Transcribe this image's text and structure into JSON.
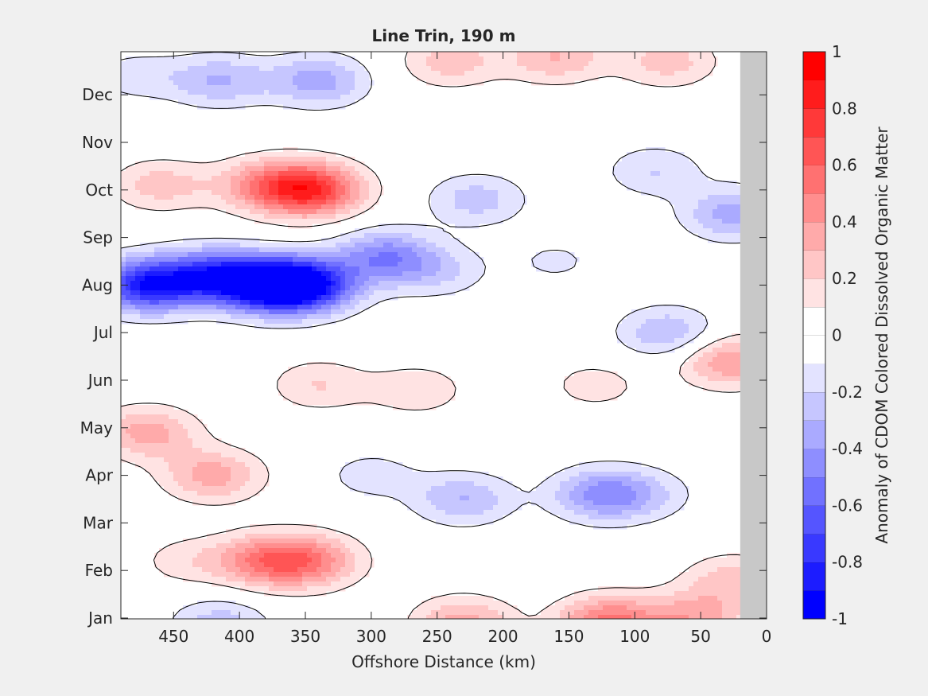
{
  "chart_data": {
    "type": "heatmap",
    "subtype": "filled-contour",
    "title": "Line Trin, 190 m",
    "xlabel": "Offshore Distance (km)",
    "xlim": [
      490,
      0
    ],
    "xticks": [
      450,
      400,
      350,
      300,
      250,
      200,
      150,
      100,
      50,
      0
    ],
    "y_tick_labels": [
      "Jan",
      "Feb",
      "Mar",
      "Apr",
      "May",
      "Jun",
      "Jul",
      "Aug",
      "Sep",
      "Oct",
      "Nov",
      "Dec"
    ],
    "colorbar": {
      "label": "Anomaly of CDOM Colored Dissolved Organic Matter",
      "range": [
        -1,
        1
      ],
      "ticks": [
        1,
        0.8,
        0.6,
        0.4,
        0.2,
        0,
        -0.2,
        -0.4,
        -0.6,
        -0.8,
        -1
      ],
      "levels": [
        -1,
        -0.9,
        -0.8,
        -0.7,
        -0.6,
        -0.5,
        -0.4,
        -0.3,
        -0.2,
        -0.1,
        0,
        0.1,
        0.2,
        0.3,
        0.4,
        0.5,
        0.6,
        0.7,
        0.8,
        0.9,
        1
      ],
      "colormap": "blue-white-red"
    },
    "no_data_region": {
      "x_range": [
        20,
        0
      ],
      "color": "#c8c8c8"
    },
    "zero_contour": true,
    "anomaly_features": [
      {
        "x": 470,
        "month": 8.0,
        "value": -0.85
      },
      {
        "x": 380,
        "month": 8.0,
        "value": -0.85
      },
      {
        "x": 350,
        "month": 8.0,
        "value": -0.85
      },
      {
        "x": 420,
        "month": 8.2,
        "value": -0.65
      },
      {
        "x": 290,
        "month": 8.6,
        "value": -0.45
      },
      {
        "x": 250,
        "month": 8.3,
        "value": -0.2
      },
      {
        "x": 160,
        "month": 8.5,
        "value": -0.12
      },
      {
        "x": 220,
        "month": 9.8,
        "value": -0.25
      },
      {
        "x": 85,
        "month": 10.4,
        "value": -0.2
      },
      {
        "x": 75,
        "month": 7.0,
        "value": -0.3
      },
      {
        "x": 25,
        "month": 9.5,
        "value": -0.35
      },
      {
        "x": 345,
        "month": 10.0,
        "value": 0.72
      },
      {
        "x": 380,
        "month": 10.1,
        "value": 0.38
      },
      {
        "x": 460,
        "month": 10.1,
        "value": 0.25
      },
      {
        "x": 340,
        "month": 12.3,
        "value": -0.35
      },
      {
        "x": 415,
        "month": 12.3,
        "value": -0.3
      },
      {
        "x": 480,
        "month": 12.4,
        "value": -0.15
      },
      {
        "x": 160,
        "month": 12.8,
        "value": 0.3
      },
      {
        "x": 240,
        "month": 12.7,
        "value": 0.25
      },
      {
        "x": 75,
        "month": 12.7,
        "value": 0.25
      },
      {
        "x": 470,
        "month": 4.9,
        "value": 0.35
      },
      {
        "x": 420,
        "month": 4.0,
        "value": 0.35
      },
      {
        "x": 265,
        "month": 5.8,
        "value": 0.18
      },
      {
        "x": 340,
        "month": 5.9,
        "value": 0.2
      },
      {
        "x": 130,
        "month": 5.9,
        "value": 0.15
      },
      {
        "x": 28,
        "month": 6.4,
        "value": 0.4
      },
      {
        "x": 300,
        "month": 4.0,
        "value": -0.15
      },
      {
        "x": 230,
        "month": 3.5,
        "value": -0.3
      },
      {
        "x": 125,
        "month": 3.6,
        "value": -0.42
      },
      {
        "x": 90,
        "month": 3.6,
        "value": -0.15
      },
      {
        "x": 380,
        "month": 2.2,
        "value": 0.45
      },
      {
        "x": 345,
        "month": 2.2,
        "value": 0.4
      },
      {
        "x": 440,
        "month": 2.2,
        "value": 0.15
      },
      {
        "x": 120,
        "month": 0.9,
        "value": 0.55
      },
      {
        "x": 230,
        "month": 0.9,
        "value": 0.35
      },
      {
        "x": 55,
        "month": 1.0,
        "value": 0.35
      },
      {
        "x": 25,
        "month": 1.8,
        "value": 0.25
      },
      {
        "x": 415,
        "month": 0.9,
        "value": -0.25
      }
    ]
  }
}
